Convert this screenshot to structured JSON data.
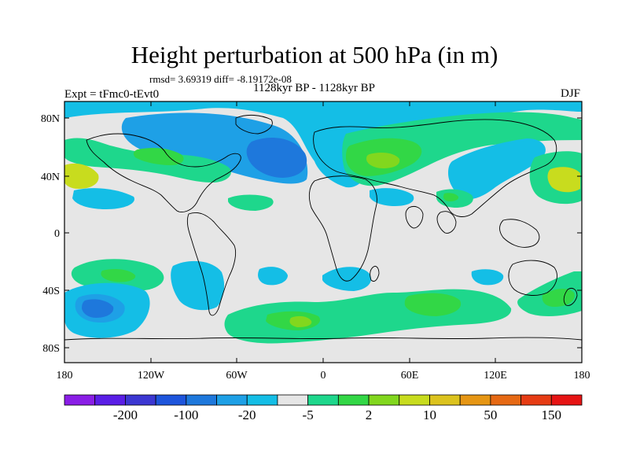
{
  "title": "Height perturbation at 500 hPa (in m)",
  "stats_line": "rmsd= 3.69319 diff= -8.19172e-08",
  "period": "1128kyr BP - 1128kyr BP",
  "experiment": "Expt = tFmc0-tEvt0",
  "season": "DJF",
  "latitude_ticks": [
    "80N",
    "40N",
    "0",
    "40S",
    "80S"
  ],
  "longitude_ticks": [
    "180",
    "120W",
    "60W",
    "0",
    "60E",
    "120E",
    "180"
  ],
  "colorbar": {
    "labels": [
      "-200",
      "-100",
      "-20",
      "-5",
      "2",
      "10",
      "50",
      "150"
    ],
    "colors": [
      "#8a1ee6",
      "#5a1ee6",
      "#3c37d2",
      "#1e55dc",
      "#1e78dc",
      "#1ea0e6",
      "#14bee6",
      "#e6e6e6",
      "#1ed78c",
      "#32d746",
      "#82d71e",
      "#c8dc1e",
      "#dcc31e",
      "#e69614",
      "#e66914",
      "#e63c14",
      "#e61414"
    ]
  },
  "colors": {
    "neutral": "#e6e6e6",
    "light_blue": "#14bee6",
    "mid_blue": "#1ea0e6",
    "blue": "#1e78dc",
    "deep_blue": "#1e55dc",
    "teal": "#1ed78c",
    "green": "#32d746",
    "yellow_green": "#c8dc1e"
  }
}
